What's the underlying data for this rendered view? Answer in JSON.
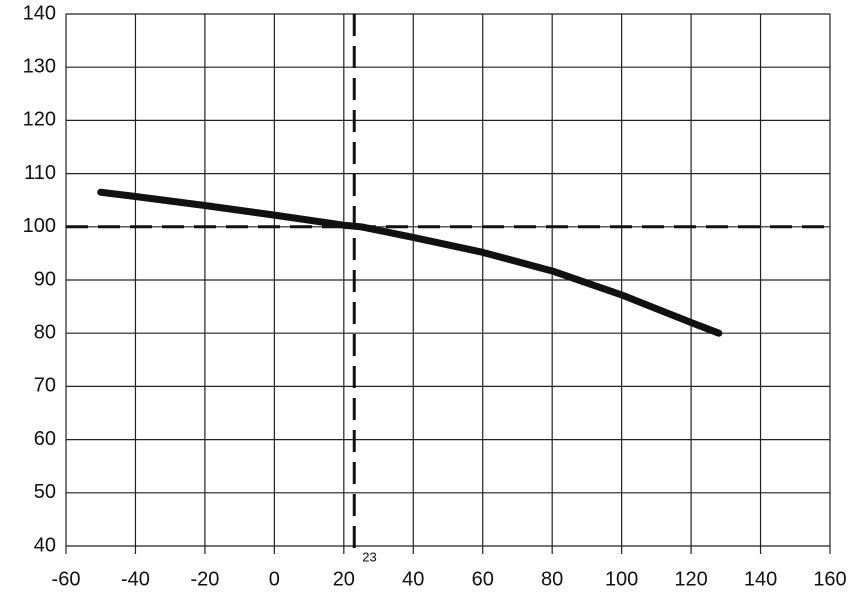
{
  "chart_data": {
    "type": "line",
    "x": [
      -50,
      -40,
      -20,
      0,
      20,
      25,
      40,
      60,
      80,
      100,
      120,
      128
    ],
    "series": [
      {
        "color": "#111111",
        "values": [
          106.5,
          105.7,
          104,
          102.2,
          100.3,
          100,
          98,
          95.2,
          91.7,
          87.2,
          82,
          80
        ]
      }
    ],
    "xlim": [
      -60,
      160
    ],
    "xticks": [
      -60,
      -40,
      -20,
      0,
      20,
      40,
      60,
      80,
      100,
      120,
      140,
      160
    ],
    "ylim": [
      40,
      140
    ],
    "yticks": [
      40,
      50,
      60,
      70,
      80,
      90,
      100,
      110,
      120,
      130,
      140
    ],
    "grid": true,
    "hline": 100,
    "vline": 23
  }
}
